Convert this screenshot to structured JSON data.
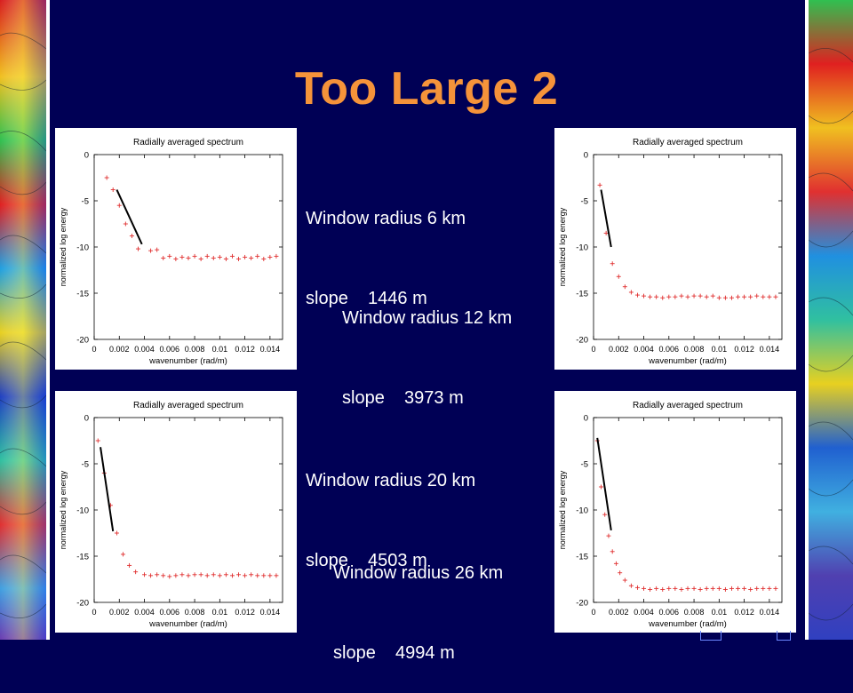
{
  "slide": {
    "title": "Too Large 2",
    "accent_color": "#F5933A",
    "background_color": "#000055"
  },
  "captions": [
    {
      "line1": "Window radius 6 km",
      "line2": "slope    1446 m"
    },
    {
      "line1": "Window radius 12 km",
      "line2": "slope    3973 m"
    },
    {
      "line1": "Window radius 20 km",
      "line2": "slope    4503 m"
    },
    {
      "line1": "Window radius 26 km",
      "line2": "slope    4994 m"
    }
  ],
  "chart_data": [
    {
      "type": "scatter",
      "title": "Radially averaged spectrum",
      "xlabel": "wavenumber (rad/m)",
      "ylabel": "normalized log energy",
      "xlim": [
        0,
        0.015
      ],
      "ylim": [
        -20,
        0
      ],
      "x_ticks": [
        0,
        0.002,
        0.004,
        0.006,
        0.008,
        0.01,
        0.012,
        0.014
      ],
      "x_tick_labels": [
        "0",
        "0.002",
        "0.004",
        "0.006",
        "0.008",
        "0.01",
        "0.012",
        "0.014"
      ],
      "y_ticks": [
        0,
        -5,
        -10,
        -15,
        -20
      ],
      "y_tick_labels": [
        "0",
        "-5",
        "-10",
        "-15",
        "-20"
      ],
      "marker_color": "#e03030",
      "fit_color": "#000000",
      "x": [
        0.001,
        0.0015,
        0.002,
        0.0025,
        0.003,
        0.0035,
        0.0045,
        0.005,
        0.0055,
        0.006,
        0.0065,
        0.007,
        0.0075,
        0.008,
        0.0085,
        0.009,
        0.0095,
        0.01,
        0.0105,
        0.011,
        0.0115,
        0.012,
        0.0125,
        0.013,
        0.0135,
        0.014,
        0.0145
      ],
      "y": [
        -2.5,
        -3.8,
        -5.5,
        -7.5,
        -8.8,
        -10.2,
        -10.4,
        -10.3,
        -11.2,
        -11.0,
        -11.3,
        -11.1,
        -11.2,
        -11.0,
        -11.3,
        -11.0,
        -11.2,
        -11.1,
        -11.3,
        -11.0,
        -11.3,
        -11.1,
        -11.2,
        -11.0,
        -11.3,
        -11.1,
        -11.0
      ],
      "fit_line": {
        "x": [
          0.0018,
          0.0038
        ],
        "y": [
          -3.8,
          -9.7
        ]
      }
    },
    {
      "type": "scatter",
      "title": "Radially averaged spectrum",
      "xlabel": "wavenumber (rad/m)",
      "ylabel": "normalized log energy",
      "xlim": [
        0,
        0.015
      ],
      "ylim": [
        -20,
        0
      ],
      "x_ticks": [
        0,
        0.002,
        0.004,
        0.006,
        0.008,
        0.01,
        0.012,
        0.014
      ],
      "x_tick_labels": [
        "0",
        "0.002",
        "0.004",
        "0.006",
        "0.008",
        "0.01",
        "0.012",
        "0.014"
      ],
      "y_ticks": [
        0,
        -5,
        -10,
        -15,
        -20
      ],
      "y_tick_labels": [
        "0",
        "-5",
        "-10",
        "-15",
        "-20"
      ],
      "marker_color": "#e03030",
      "fit_color": "#000000",
      "x": [
        0.0005,
        0.001,
        0.0015,
        0.002,
        0.0025,
        0.003,
        0.0035,
        0.004,
        0.0045,
        0.005,
        0.0055,
        0.006,
        0.0065,
        0.007,
        0.0075,
        0.008,
        0.0085,
        0.009,
        0.0095,
        0.01,
        0.0105,
        0.011,
        0.0115,
        0.012,
        0.0125,
        0.013,
        0.0135,
        0.014,
        0.0145
      ],
      "y": [
        -3.3,
        -8.5,
        -11.8,
        -13.2,
        -14.3,
        -14.9,
        -15.2,
        -15.3,
        -15.4,
        -15.4,
        -15.5,
        -15.4,
        -15.4,
        -15.3,
        -15.4,
        -15.3,
        -15.3,
        -15.4,
        -15.3,
        -15.5,
        -15.5,
        -15.5,
        -15.4,
        -15.4,
        -15.4,
        -15.3,
        -15.4,
        -15.4,
        -15.4
      ],
      "fit_line": {
        "x": [
          0.0006,
          0.0014
        ],
        "y": [
          -3.8,
          -10.0
        ]
      }
    },
    {
      "type": "scatter",
      "title": "Radially averaged spectrum",
      "xlabel": "wavenumber (rad/m)",
      "ylabel": "normalized log energy",
      "xlim": [
        0,
        0.015
      ],
      "ylim": [
        -20,
        0
      ],
      "x_ticks": [
        0,
        0.002,
        0.004,
        0.006,
        0.008,
        0.01,
        0.012,
        0.014
      ],
      "x_tick_labels": [
        "0",
        "0.002",
        "0.004",
        "0.006",
        "0.008",
        "0.01",
        "0.012",
        "0.014"
      ],
      "y_ticks": [
        0,
        -5,
        -10,
        -15,
        -20
      ],
      "y_tick_labels": [
        "0",
        "-5",
        "-10",
        "-15",
        "-20"
      ],
      "marker_color": "#e03030",
      "fit_color": "#000000",
      "x": [
        0.0003,
        0.0008,
        0.0013,
        0.0018,
        0.0023,
        0.0028,
        0.0033,
        0.004,
        0.0045,
        0.005,
        0.0055,
        0.006,
        0.0065,
        0.007,
        0.0075,
        0.008,
        0.0085,
        0.009,
        0.0095,
        0.01,
        0.0105,
        0.011,
        0.0115,
        0.012,
        0.0125,
        0.013,
        0.0135,
        0.014,
        0.0145
      ],
      "y": [
        -2.5,
        -6.0,
        -9.5,
        -12.5,
        -14.8,
        -16.0,
        -16.7,
        -17.0,
        -17.1,
        -17.0,
        -17.1,
        -17.2,
        -17.1,
        -17.0,
        -17.1,
        -17.0,
        -17.0,
        -17.1,
        -17.0,
        -17.1,
        -17.0,
        -17.1,
        -17.0,
        -17.1,
        -17.0,
        -17.1,
        -17.1,
        -17.1,
        -17.1
      ],
      "fit_line": {
        "x": [
          0.0005,
          0.0015
        ],
        "y": [
          -3.2,
          -12.3
        ]
      }
    },
    {
      "type": "scatter",
      "title": "Radially averaged spectrum",
      "xlabel": "wavenumber (rad/m)",
      "ylabel": "normalized log energy",
      "xlim": [
        0,
        0.015
      ],
      "ylim": [
        -20,
        0
      ],
      "x_ticks": [
        0,
        0.002,
        0.004,
        0.006,
        0.008,
        0.01,
        0.012,
        0.014
      ],
      "x_tick_labels": [
        "0",
        "0.002",
        "0.004",
        "0.006",
        "0.008",
        "0.01",
        "0.012",
        "0.014"
      ],
      "y_ticks": [
        0,
        -5,
        -10,
        -15,
        -20
      ],
      "y_tick_labels": [
        "0",
        "-5",
        "-10",
        "-15",
        "-20"
      ],
      "marker_color": "#e03030",
      "fit_color": "#000000",
      "x": [
        0.0003,
        0.0006,
        0.0009,
        0.0012,
        0.0015,
        0.0018,
        0.0021,
        0.0025,
        0.003,
        0.0035,
        0.004,
        0.0045,
        0.005,
        0.0055,
        0.006,
        0.0065,
        0.007,
        0.0075,
        0.008,
        0.0085,
        0.009,
        0.0095,
        0.01,
        0.0105,
        0.011,
        0.0115,
        0.012,
        0.0125,
        0.013,
        0.0135,
        0.014,
        0.0145
      ],
      "y": [
        -2.5,
        -7.5,
        -10.5,
        -12.8,
        -14.5,
        -15.8,
        -16.8,
        -17.6,
        -18.2,
        -18.4,
        -18.5,
        -18.6,
        -18.5,
        -18.6,
        -18.5,
        -18.5,
        -18.6,
        -18.5,
        -18.5,
        -18.6,
        -18.5,
        -18.5,
        -18.5,
        -18.6,
        -18.5,
        -18.5,
        -18.5,
        -18.6,
        -18.5,
        -18.5,
        -18.5,
        -18.5
      ],
      "fit_line": {
        "x": [
          0.0003,
          0.0014
        ],
        "y": [
          -2.2,
          -12.2
        ]
      }
    }
  ]
}
